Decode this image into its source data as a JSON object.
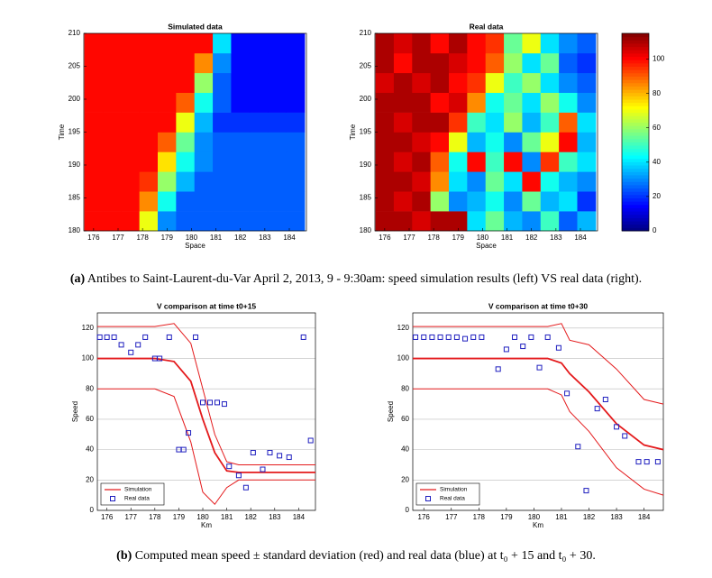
{
  "chart_data": [
    {
      "type": "heatmap",
      "title": "Simulated data",
      "xlabel": "Space",
      "ylabel": "Time",
      "xlim": [
        175.6,
        184.7
      ],
      "xticks": [
        176,
        177,
        178,
        179,
        180,
        181,
        182,
        183,
        184
      ],
      "ylim": [
        180,
        210
      ],
      "yticks": [
        180,
        185,
        190,
        195,
        200,
        205,
        210
      ],
      "zlim": [
        0,
        115
      ],
      "x": [
        176,
        176.75,
        177.5,
        178.25,
        179,
        179.75,
        180.5,
        181.25,
        182,
        182.75,
        183.5,
        184.25
      ],
      "y": [
        181.5,
        184.5,
        187.5,
        190.5,
        193.5,
        196.5,
        199.5,
        202.5,
        205.5,
        208.5
      ],
      "z": [
        [
          100,
          100,
          100,
          70,
          30,
          25,
          25,
          25,
          25,
          25,
          25,
          25
        ],
        [
          100,
          100,
          100,
          85,
          45,
          25,
          25,
          25,
          25,
          25,
          25,
          25
        ],
        [
          100,
          100,
          100,
          95,
          60,
          35,
          25,
          25,
          25,
          25,
          25,
          25
        ],
        [
          100,
          100,
          100,
          100,
          75,
          45,
          30,
          25,
          25,
          25,
          25,
          25
        ],
        [
          100,
          100,
          100,
          100,
          90,
          55,
          30,
          25,
          25,
          25,
          25,
          25
        ],
        [
          100,
          100,
          100,
          100,
          100,
          70,
          35,
          20,
          20,
          20,
          20,
          20
        ],
        [
          100,
          100,
          100,
          100,
          100,
          90,
          45,
          25,
          15,
          15,
          15,
          15
        ],
        [
          100,
          100,
          100,
          100,
          100,
          100,
          60,
          25,
          15,
          15,
          15,
          15
        ],
        [
          100,
          100,
          100,
          100,
          100,
          100,
          85,
          30,
          15,
          15,
          15,
          15
        ],
        [
          100,
          100,
          100,
          100,
          100,
          100,
          100,
          40,
          15,
          15,
          15,
          15
        ]
      ]
    },
    {
      "type": "heatmap",
      "title": "Real data",
      "xlabel": "Space",
      "ylabel": "Time",
      "xlim": [
        175.6,
        184.7
      ],
      "xticks": [
        176,
        177,
        178,
        179,
        180,
        181,
        182,
        183,
        184
      ],
      "ylim": [
        180,
        210
      ],
      "yticks": [
        180,
        185,
        190,
        195,
        200,
        205,
        210
      ],
      "zlim": [
        0,
        115
      ],
      "zticks": [
        0,
        20,
        40,
        60,
        80,
        100
      ],
      "x": [
        176,
        176.75,
        177.5,
        178.25,
        179,
        179.75,
        180.5,
        181.25,
        182,
        182.75,
        183.5,
        184.25
      ],
      "y": [
        181.5,
        184.5,
        187.5,
        190.5,
        193.5,
        196.5,
        199.5,
        202.5,
        205.5,
        208.5
      ],
      "z": [
        [
          110,
          110,
          105,
          110,
          110,
          40,
          55,
          35,
          30,
          50,
          25,
          35
        ],
        [
          110,
          105,
          110,
          60,
          30,
          35,
          45,
          30,
          55,
          35,
          40,
          20
        ],
        [
          110,
          110,
          105,
          85,
          40,
          30,
          55,
          40,
          100,
          45,
          35,
          30
        ],
        [
          110,
          105,
          110,
          90,
          45,
          100,
          50,
          100,
          30,
          95,
          50,
          40
        ],
        [
          110,
          110,
          105,
          100,
          70,
          35,
          45,
          30,
          55,
          70,
          100,
          35
        ],
        [
          110,
          105,
          110,
          110,
          95,
          50,
          40,
          60,
          35,
          50,
          90,
          40
        ],
        [
          110,
          110,
          110,
          100,
          105,
          85,
          45,
          55,
          40,
          60,
          45,
          30
        ],
        [
          105,
          110,
          105,
          110,
          100,
          95,
          70,
          50,
          60,
          40,
          30,
          25
        ],
        [
          110,
          100,
          110,
          110,
          105,
          100,
          90,
          60,
          40,
          55,
          25,
          20
        ],
        [
          110,
          105,
          110,
          100,
          110,
          100,
          95,
          55,
          70,
          40,
          30,
          25
        ]
      ]
    },
    {
      "type": "band-line",
      "title": "V comparison at time t0+15",
      "xlabel": "Km",
      "ylabel": "Speed",
      "xlim": [
        175.6,
        184.7
      ],
      "xticks": [
        176,
        177,
        178,
        179,
        180,
        181,
        182,
        183,
        184
      ],
      "ylim": [
        0,
        130
      ],
      "yticks": [
        0,
        20,
        40,
        60,
        80,
        100,
        120
      ],
      "legend": "lower left",
      "x": [
        175.6,
        176,
        177,
        178,
        178.8,
        179.5,
        180,
        180.5,
        181,
        181.5,
        182,
        183,
        184,
        184.7
      ],
      "series": [
        {
          "name": "Simulation",
          "color": "#e41a1c",
          "values": [
            100,
            100,
            100,
            100,
            98,
            85,
            60,
            38,
            26,
            25,
            25,
            25,
            25,
            25
          ],
          "upper": [
            121,
            121,
            121,
            121,
            123,
            110,
            80,
            50,
            32,
            30,
            30,
            30,
            30,
            30
          ],
          "lower": [
            80,
            80,
            80,
            80,
            75,
            45,
            12,
            4,
            15,
            20,
            20,
            20,
            20,
            20
          ]
        }
      ],
      "points": {
        "name": "Real data",
        "color": "#1f1fbf",
        "x": [
          175.7,
          176,
          176.3,
          176.6,
          177,
          177.3,
          177.6,
          178,
          178.2,
          178.6,
          179,
          179.2,
          179.4,
          179.7,
          180,
          180.3,
          180.6,
          180.9,
          181.1,
          181.5,
          181.8,
          182.1,
          182.5,
          182.8,
          183.2,
          183.6,
          184.2,
          184.5
        ],
        "values": [
          114,
          114,
          114,
          109,
          104,
          109,
          114,
          100,
          100,
          114,
          40,
          40,
          51,
          114,
          71,
          71,
          71,
          70,
          29,
          23,
          15,
          38,
          27,
          38,
          36,
          35,
          114,
          46
        ]
      }
    },
    {
      "type": "band-line",
      "title": "V comparison at time t0+30",
      "xlabel": "Km",
      "ylabel": "Speed",
      "xlim": [
        175.6,
        184.7
      ],
      "xticks": [
        176,
        177,
        178,
        179,
        180,
        181,
        182,
        183,
        184
      ],
      "ylim": [
        0,
        130
      ],
      "yticks": [
        0,
        20,
        40,
        60,
        80,
        100,
        120
      ],
      "legend": "lower left",
      "x": [
        175.6,
        176,
        177,
        178,
        179,
        180,
        180.5,
        181,
        181.3,
        182,
        183,
        184,
        184.7
      ],
      "series": [
        {
          "name": "Simulation",
          "color": "#e41a1c",
          "values": [
            100,
            100,
            100,
            100,
            100,
            100,
            100,
            97,
            90,
            78,
            57,
            43,
            40
          ],
          "upper": [
            121,
            121,
            121,
            121,
            121,
            121,
            121,
            123,
            112,
            109,
            93,
            73,
            70
          ],
          "lower": [
            80,
            80,
            80,
            80,
            80,
            80,
            80,
            76,
            65,
            52,
            28,
            14,
            10
          ]
        }
      ],
      "points": {
        "name": "Real data",
        "color": "#1f1fbf",
        "x": [
          175.7,
          176,
          176.3,
          176.6,
          176.9,
          177.2,
          177.5,
          177.8,
          178.1,
          178.7,
          179,
          179.3,
          179.6,
          179.9,
          180.2,
          180.5,
          180.9,
          181.2,
          181.6,
          181.9,
          182.3,
          182.6,
          183,
          183.3,
          183.8,
          184.1,
          184.5
        ],
        "values": [
          114,
          114,
          114,
          114,
          114,
          114,
          113,
          114,
          114,
          93,
          106,
          114,
          108,
          114,
          94,
          114,
          107,
          77,
          42,
          13,
          67,
          73,
          55,
          49,
          32,
          32,
          32
        ]
      }
    }
  ],
  "captions": [
    {
      "label": "(a)",
      "text": "Antibes to Saint-Laurent-du-Var April 2, 2013, 9 - 9:30am: speed simulation results (left) VS real data (right)."
    },
    {
      "label": "(b)",
      "text": "Computed mean speed ± standard deviation (red) and real data (blue) at t₀ + 15 and t₀ + 30."
    }
  ]
}
